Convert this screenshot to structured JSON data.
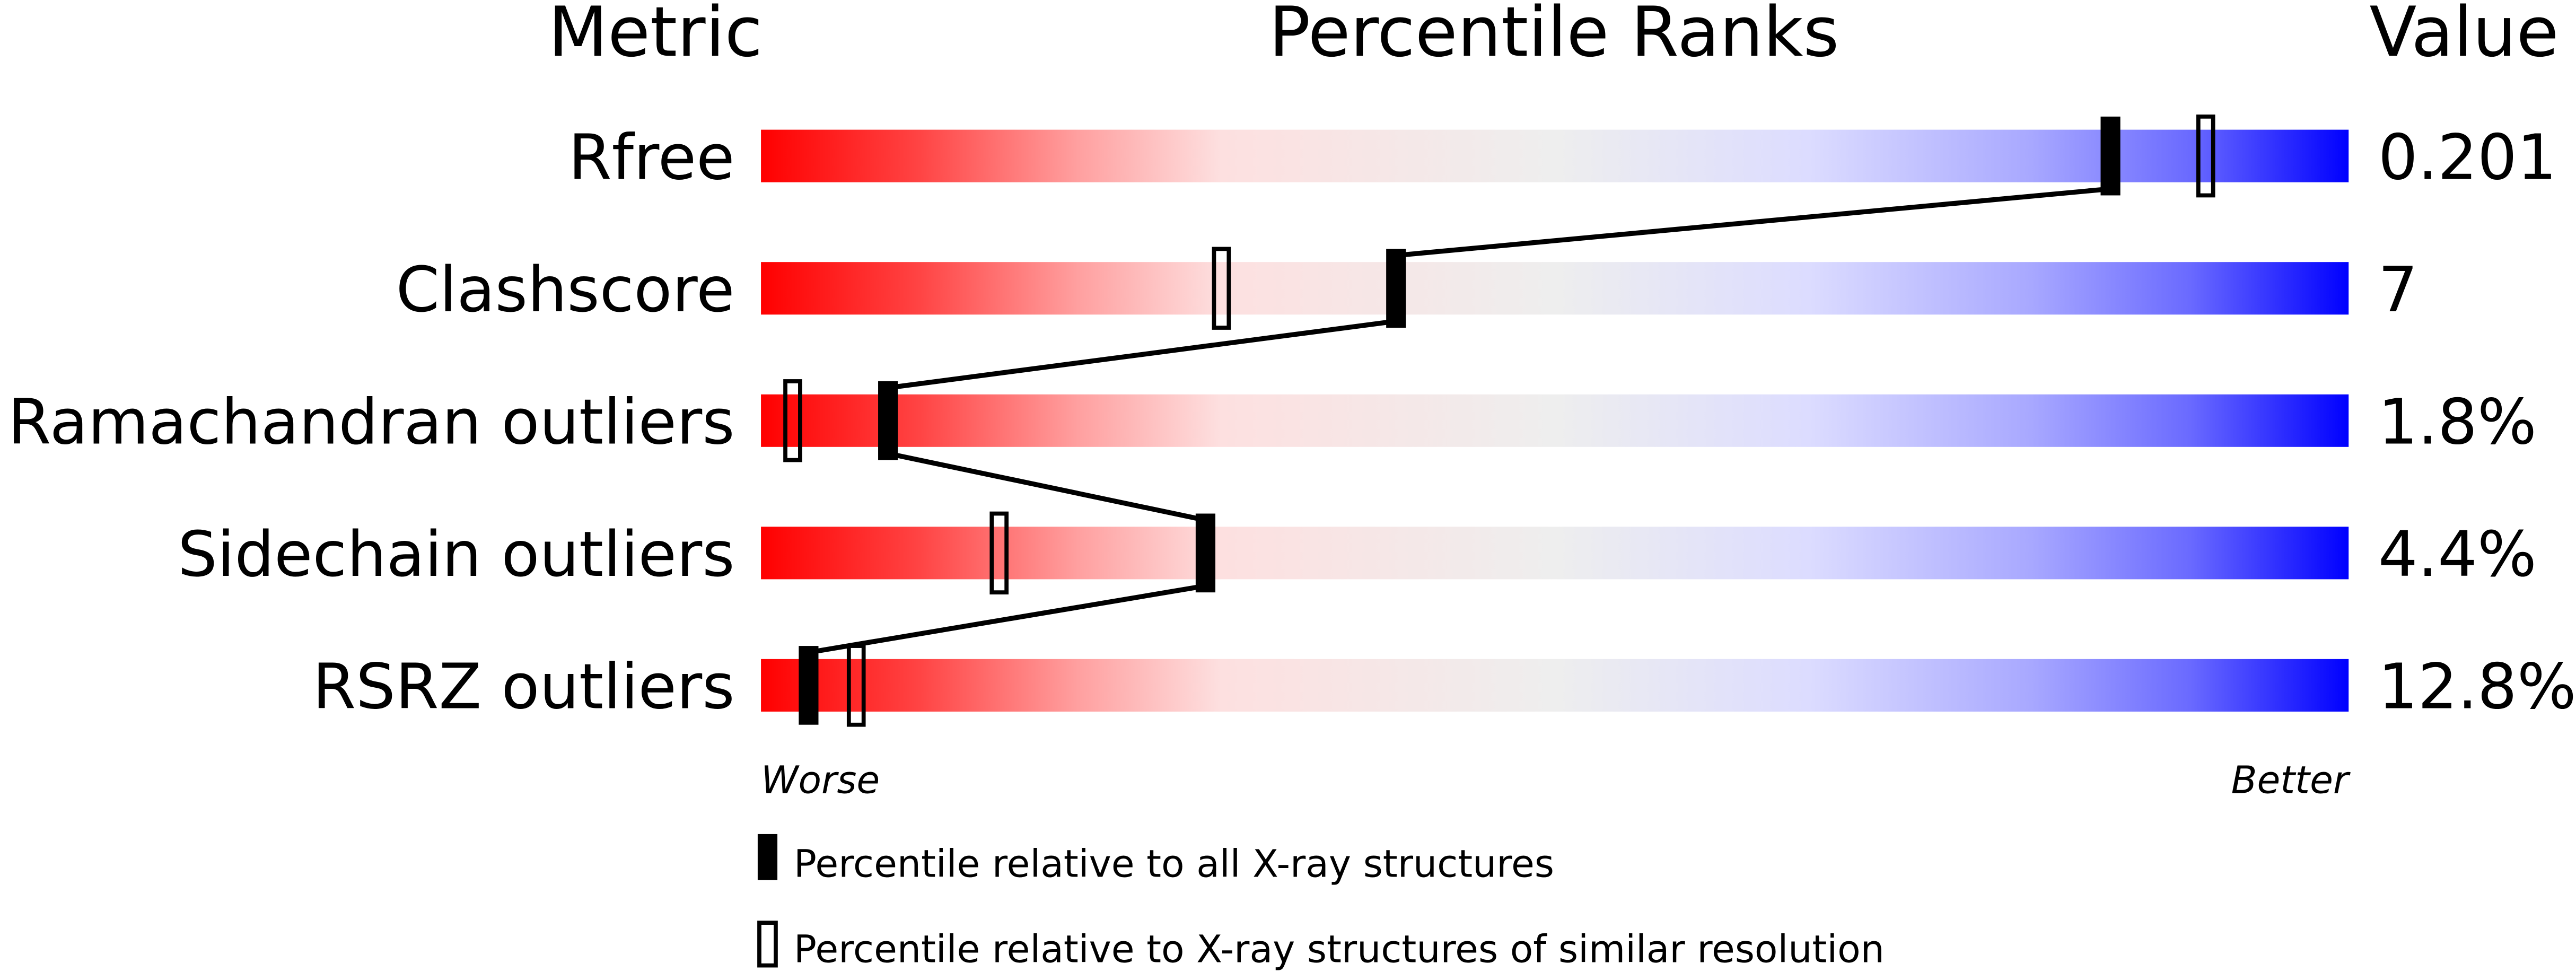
{
  "chart_data": {
    "type": "percentile-slider",
    "headers": {
      "metric": "Metric",
      "ranks": "Percentile Ranks",
      "value": "Value"
    },
    "xlim": [
      0,
      100
    ],
    "axis_labels": {
      "left": "Worse",
      "right": "Better"
    },
    "metrics": [
      {
        "name": "Rfree",
        "value": "0.201",
        "percentile_all": 85,
        "percentile_similar": 91
      },
      {
        "name": "Clashscore",
        "value": "7",
        "percentile_all": 40,
        "percentile_similar": 29
      },
      {
        "name": "Ramachandran outliers",
        "value": "1.8%",
        "percentile_all": 8,
        "percentile_similar": 2
      },
      {
        "name": "Sidechain outliers",
        "value": "4.4%",
        "percentile_all": 28,
        "percentile_similar": 15
      },
      {
        "name": "RSRZ outliers",
        "value": "12.8%",
        "percentile_all": 3,
        "percentile_similar": 6
      }
    ],
    "legend": [
      {
        "marker": "filled",
        "label": "Percentile relative to all X-ray structures"
      },
      {
        "marker": "open",
        "label": "Percentile relative to X-ray structures of similar resolution"
      }
    ],
    "gradient_colors": [
      "#ff0000",
      "#ff4444",
      "#ffa0a0",
      "#fde0e0",
      "#eeeeee",
      "#dcdcff",
      "#a8a8ff",
      "#6a6aff",
      "#0000ff"
    ]
  }
}
